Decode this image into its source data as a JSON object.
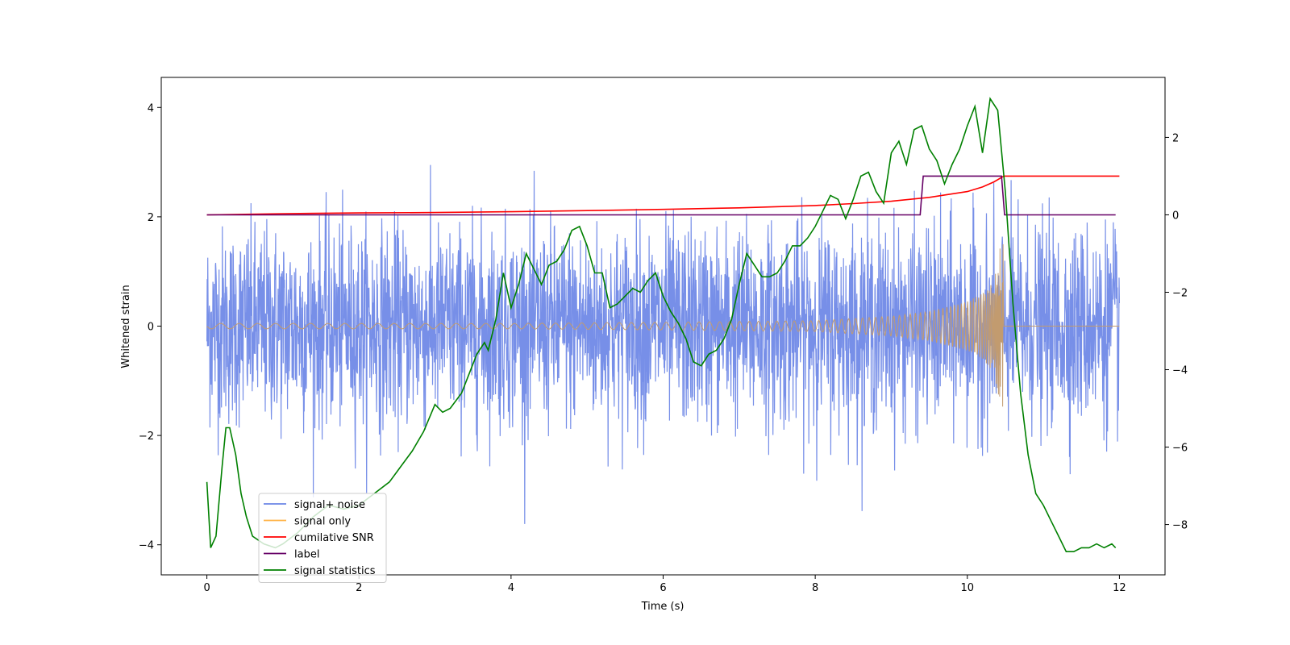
{
  "chart_data": {
    "type": "line",
    "xlabel": "Time (s)",
    "ylabel_left": "Whitened strain",
    "ylabel_right": "",
    "xlim": [
      -0.6,
      12.6
    ],
    "ylim_left": [
      -4.55,
      4.55
    ],
    "ylim_right": [
      -9.3,
      3.55
    ],
    "x_ticks": [
      0,
      2,
      4,
      6,
      8,
      10,
      12
    ],
    "y_ticks_left": [
      -4,
      -2,
      0,
      2,
      4
    ],
    "y_ticks_right": [
      -8,
      -6,
      -4,
      -2,
      0,
      2
    ],
    "grid": false,
    "legend_position": "lower-left",
    "legend": [
      {
        "label": "signal+ noise",
        "color": "#6b86e6"
      },
      {
        "label": "signal only",
        "color": "#ffb347"
      },
      {
        "label": "cumilative SNR",
        "color": "#ff0000"
      },
      {
        "label": "label",
        "color": "#660066"
      },
      {
        "label": "signal statistics",
        "color": "#008000"
      }
    ],
    "series": [
      {
        "name": "signal+ noise",
        "axis": "left",
        "color": "#6b86e6",
        "description_values": {
          "t_start": 0,
          "t_end": 12.0,
          "typical_range": [
            -2.2,
            2.3
          ],
          "extreme_min": -4.15,
          "extreme_max": 4.12
        }
      },
      {
        "name": "signal only",
        "axis": "left",
        "color": "#ffb347",
        "envelope": {
          "t": [
            0,
            2,
            4,
            6,
            8,
            9,
            9.5,
            10,
            10.2,
            10.35,
            10.45,
            10.48,
            10.5,
            12.0
          ],
          "amp": [
            0.05,
            0.05,
            0.05,
            0.07,
            0.1,
            0.18,
            0.27,
            0.45,
            0.6,
            0.85,
            1.6,
            1.7,
            0,
            0
          ]
        }
      },
      {
        "name": "cumilative SNR",
        "axis": "right",
        "color": "#ff0000",
        "x": [
          0,
          1,
          2,
          3,
          4,
          5,
          6,
          7,
          8,
          8.5,
          9,
          9.5,
          10,
          10.2,
          10.35,
          10.48,
          12.0
        ],
        "y": [
          0,
          0.03,
          0.05,
          0.06,
          0.08,
          0.11,
          0.14,
          0.18,
          0.24,
          0.29,
          0.35,
          0.45,
          0.6,
          0.72,
          0.85,
          1.0,
          1.0
        ]
      },
      {
        "name": "label",
        "axis": "right",
        "color": "#660066",
        "x": [
          0,
          9.38,
          9.42,
          10.45,
          10.49,
          11.95
        ],
        "y": [
          0,
          0,
          1,
          1,
          0,
          0
        ]
      },
      {
        "name": "signal statistics",
        "axis": "right",
        "color": "#008000",
        "x": [
          0,
          0.05,
          0.12,
          0.2,
          0.25,
          0.3,
          0.38,
          0.45,
          0.52,
          0.6,
          0.75,
          0.9,
          1.0,
          1.2,
          1.4,
          1.6,
          1.8,
          2.0,
          2.2,
          2.4,
          2.55,
          2.7,
          2.85,
          3.0,
          3.1,
          3.2,
          3.35,
          3.45,
          3.55,
          3.65,
          3.7,
          3.8,
          3.9,
          4.0,
          4.1,
          4.2,
          4.3,
          4.4,
          4.5,
          4.6,
          4.7,
          4.8,
          4.9,
          5.0,
          5.1,
          5.2,
          5.3,
          5.4,
          5.5,
          5.6,
          5.7,
          5.8,
          5.9,
          6.0,
          6.1,
          6.2,
          6.3,
          6.4,
          6.5,
          6.6,
          6.7,
          6.8,
          6.9,
          7.0,
          7.1,
          7.2,
          7.3,
          7.4,
          7.5,
          7.6,
          7.7,
          7.8,
          7.9,
          8.0,
          8.1,
          8.2,
          8.3,
          8.4,
          8.5,
          8.6,
          8.7,
          8.8,
          8.9,
          9.0,
          9.1,
          9.2,
          9.3,
          9.4,
          9.5,
          9.6,
          9.7,
          9.8,
          9.9,
          10.0,
          10.1,
          10.2,
          10.3,
          10.4,
          10.5,
          10.6,
          10.7,
          10.8,
          10.9,
          11.0,
          11.1,
          11.2,
          11.3,
          11.4,
          11.5,
          11.6,
          11.7,
          11.8,
          11.9,
          11.95
        ],
        "y": [
          -6.9,
          -8.6,
          -8.3,
          -6.5,
          -5.5,
          -5.5,
          -6.2,
          -7.2,
          -7.8,
          -8.3,
          -8.5,
          -8.6,
          -8.5,
          -8.2,
          -7.8,
          -7.5,
          -7.6,
          -7.5,
          -7.2,
          -6.9,
          -6.5,
          -6.1,
          -5.6,
          -4.9,
          -5.1,
          -5.0,
          -4.6,
          -4.1,
          -3.6,
          -3.3,
          -3.5,
          -2.7,
          -1.5,
          -2.4,
          -1.8,
          -1.0,
          -1.4,
          -1.8,
          -1.3,
          -1.2,
          -0.9,
          -0.4,
          -0.3,
          -0.8,
          -1.5,
          -1.5,
          -2.4,
          -2.3,
          -2.1,
          -1.9,
          -2.0,
          -1.7,
          -1.5,
          -2.1,
          -2.5,
          -2.8,
          -3.2,
          -3.8,
          -3.9,
          -3.6,
          -3.5,
          -3.2,
          -2.7,
          -1.8,
          -1.0,
          -1.3,
          -1.6,
          -1.6,
          -1.5,
          -1.2,
          -0.8,
          -0.8,
          -0.6,
          -0.3,
          0.1,
          0.5,
          0.4,
          -0.1,
          0.4,
          1.0,
          1.1,
          0.6,
          0.3,
          1.6,
          1.9,
          1.3,
          2.2,
          2.3,
          1.7,
          1.4,
          0.8,
          1.3,
          1.7,
          2.3,
          2.8,
          1.6,
          3.0,
          2.7,
          0.6,
          -2.3,
          -4.6,
          -6.2,
          -7.2,
          -7.5,
          -7.9,
          -8.3,
          -8.7,
          -8.7,
          -8.6,
          -8.6,
          -8.5,
          -8.6,
          -8.5,
          -8.6
        ]
      }
    ]
  }
}
